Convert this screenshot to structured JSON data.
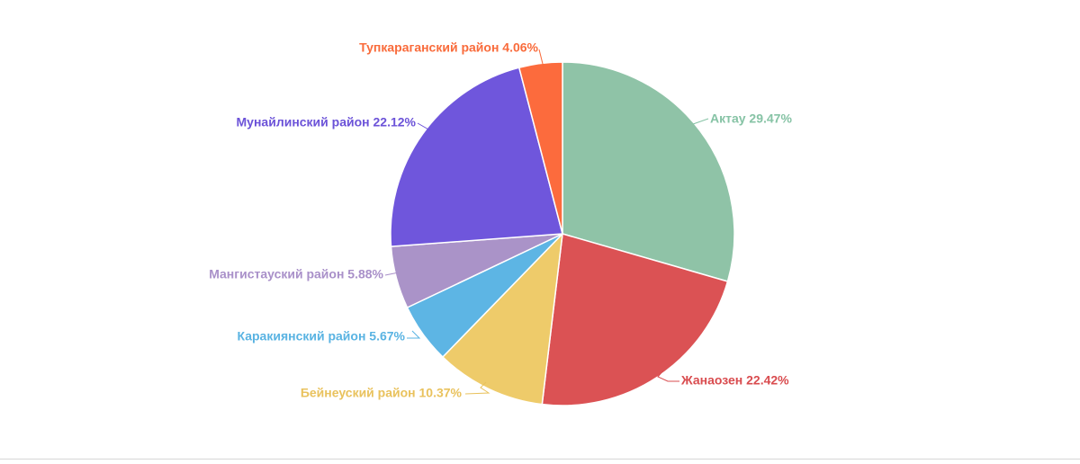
{
  "chart_data": {
    "type": "pie",
    "title": "",
    "slices": [
      {
        "label": "Актау",
        "value": 29.47,
        "display": "Актау 29.47%",
        "color": "#8fc3a7"
      },
      {
        "label": "Жанаозен",
        "value": 22.42,
        "display": "Жанаозен 22.42%",
        "color": "#db5254"
      },
      {
        "label": "Бейнеуский район",
        "value": 10.37,
        "display": "Бейнеуский район 10.37%",
        "color": "#eecb6a"
      },
      {
        "label": "Каракиянский район",
        "value": 5.67,
        "display": "Каракиянский район 5.67%",
        "color": "#5db5e4"
      },
      {
        "label": "Мангистауский район",
        "value": 5.88,
        "display": "Мангистауский район 5.88%",
        "color": "#aa93c8"
      },
      {
        "label": "Мунайлинский район",
        "value": 22.12,
        "display": "Мунайлинский район 22.12%",
        "color": "#6f56dc"
      },
      {
        "label": "Тупкараганский район",
        "value": 4.06,
        "display": "Тупкараганский район 4.06%",
        "color": "#fc6b3d"
      }
    ],
    "start_angle": "12 o'clock",
    "direction": "clockwise",
    "legend": "none"
  }
}
